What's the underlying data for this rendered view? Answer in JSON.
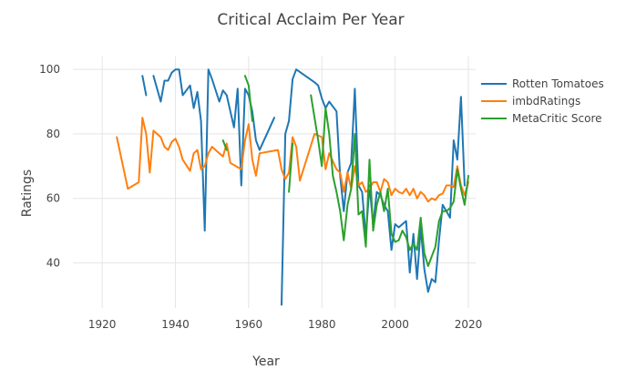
{
  "chart_data": {
    "type": "line",
    "title": "Critical Acclaim Per Year",
    "xlabel": "Year",
    "ylabel": "Ratings",
    "xlim": [
      1912,
      2022
    ],
    "ylim": [
      26,
      104
    ],
    "xticks": [
      1920,
      1940,
      1960,
      1980,
      2000,
      2020
    ],
    "yticks": [
      40,
      60,
      80,
      100
    ],
    "grid": true,
    "legend_position": "top-right",
    "series": [
      {
        "name": "Rotten Tomatoes",
        "color": "#1f77b4",
        "segments": [
          [
            [
              1931,
              98
            ],
            [
              1932,
              92
            ]
          ],
          [
            [
              1934,
              98
            ],
            [
              1936,
              90
            ],
            [
              1937,
              96.5
            ],
            [
              1938,
              96.5
            ],
            [
              1939,
              99
            ],
            [
              1940,
              100
            ],
            [
              1941,
              100
            ],
            [
              1942,
              92
            ],
            [
              1944,
              95
            ],
            [
              1945,
              88
            ],
            [
              1946,
              93
            ],
            [
              1947,
              84
            ],
            [
              1948,
              50
            ],
            [
              1949,
              100
            ],
            [
              1950,
              97
            ],
            [
              1952,
              90
            ],
            [
              1953,
              93.5
            ],
            [
              1954,
              92
            ],
            [
              1956,
              82
            ],
            [
              1957,
              94
            ],
            [
              1958,
              64
            ],
            [
              1959,
              94
            ],
            [
              1960,
              92
            ],
            [
              1961,
              87
            ],
            [
              1962,
              78
            ],
            [
              1963,
              75
            ],
            [
              1967,
              85
            ]
          ],
          [
            [
              1969,
              27
            ],
            [
              1970,
              80
            ],
            [
              1971,
              84
            ],
            [
              1972,
              97
            ],
            [
              1973,
              100
            ],
            [
              1978,
              96
            ],
            [
              1979,
              95
            ],
            [
              1980,
              91
            ],
            [
              1981,
              88
            ],
            [
              1982,
              90
            ],
            [
              1984,
              87
            ],
            [
              1985,
              67
            ],
            [
              1986,
              56
            ],
            [
              1987,
              68
            ],
            [
              1988,
              71
            ],
            [
              1989,
              94
            ],
            [
              1990,
              64
            ],
            [
              1991,
              62
            ],
            [
              1992,
              48
            ],
            [
              1993,
              64
            ],
            [
              1994,
              52
            ],
            [
              1995,
              62
            ],
            [
              1996,
              61
            ],
            [
              1997,
              58
            ],
            [
              1998,
              56
            ],
            [
              1999,
              44
            ],
            [
              2000,
              52
            ],
            [
              2001,
              51
            ],
            [
              2002,
              52
            ],
            [
              2003,
              53
            ],
            [
              2004,
              37
            ],
            [
              2005,
              49
            ],
            [
              2006,
              35
            ],
            [
              2007,
              51
            ],
            [
              2008,
              38
            ],
            [
              2009,
              31
            ],
            [
              2010,
              35
            ],
            [
              2011,
              34
            ],
            [
              2012,
              47
            ],
            [
              2013,
              58
            ],
            [
              2014,
              56
            ],
            [
              2015,
              54
            ],
            [
              2016,
              78
            ],
            [
              2017,
              72
            ],
            [
              2018,
              91.5
            ],
            [
              2019,
              64
            ]
          ]
        ]
      },
      {
        "name": "imbdRatings",
        "color": "#ff7f0e",
        "segments": [
          [
            [
              1924,
              79
            ],
            [
              1927,
              63
            ],
            [
              1930,
              65
            ],
            [
              1931,
              85
            ],
            [
              1932,
              80
            ],
            [
              1933,
              68
            ],
            [
              1934,
              81
            ],
            [
              1936,
              79
            ],
            [
              1937,
              76
            ],
            [
              1938,
              75
            ],
            [
              1939,
              77.5
            ],
            [
              1940,
              78.5
            ],
            [
              1941,
              76
            ],
            [
              1942,
              72
            ],
            [
              1944,
              68.5
            ],
            [
              1945,
              74
            ],
            [
              1946,
              75
            ],
            [
              1947,
              69
            ],
            [
              1948,
              70
            ],
            [
              1949,
              74
            ],
            [
              1950,
              76
            ],
            [
              1952,
              74
            ],
            [
              1953,
              73
            ],
            [
              1954,
              77
            ],
            [
              1955,
              71
            ],
            [
              1958,
              69
            ],
            [
              1959,
              78
            ],
            [
              1960,
              83
            ],
            [
              1961,
              72
            ],
            [
              1962,
              67
            ],
            [
              1963,
              74
            ],
            [
              1968,
              75
            ],
            [
              1969,
              69
            ],
            [
              1970,
              66
            ],
            [
              1971,
              68
            ],
            [
              1972,
              79
            ],
            [
              1973,
              76
            ],
            [
              1974,
              65.5
            ],
            [
              1978,
              80
            ],
            [
              1980,
              79
            ],
            [
              1981,
              69
            ],
            [
              1982,
              74
            ],
            [
              1984,
              69
            ],
            [
              1985,
              68
            ],
            [
              1986,
              62
            ],
            [
              1987,
              68
            ],
            [
              1988,
              63
            ],
            [
              1989,
              70
            ],
            [
              1990,
              64
            ],
            [
              1991,
              65
            ],
            [
              1992,
              62
            ],
            [
              1993,
              63
            ],
            [
              1994,
              65
            ],
            [
              1995,
              65
            ],
            [
              1996,
              62
            ],
            [
              1997,
              66
            ],
            [
              1998,
              65
            ],
            [
              1999,
              61
            ],
            [
              2000,
              63
            ],
            [
              2001,
              62
            ],
            [
              2002,
              61.5
            ],
            [
              2003,
              63
            ],
            [
              2004,
              61
            ],
            [
              2005,
              63
            ],
            [
              2006,
              60
            ],
            [
              2007,
              62
            ],
            [
              2008,
              61
            ],
            [
              2009,
              59
            ],
            [
              2010,
              60
            ],
            [
              2011,
              59.5
            ],
            [
              2012,
              61
            ],
            [
              2013,
              61.5
            ],
            [
              2014,
              64
            ],
            [
              2015,
              64
            ],
            [
              2016,
              63.5
            ],
            [
              2017,
              70
            ],
            [
              2018,
              64
            ],
            [
              2019,
              61
            ],
            [
              2020,
              65
            ]
          ]
        ]
      },
      {
        "name": "MetaCritic Score",
        "color": "#2ca02c",
        "segments": [
          [
            [
              1953,
              78
            ],
            [
              1954,
              75
            ]
          ],
          [
            [
              1959,
              98
            ],
            [
              1960,
              95
            ],
            [
              1961,
              84
            ]
          ],
          [
            [
              1971,
              62
            ],
            [
              1972,
              77
            ]
          ],
          [
            [
              1977,
              92
            ],
            [
              1978,
              85
            ],
            [
              1979,
              78
            ],
            [
              1980,
              70
            ],
            [
              1981,
              88
            ],
            [
              1982,
              80
            ],
            [
              1983,
              67
            ],
            [
              1984,
              62
            ],
            [
              1985,
              56
            ],
            [
              1986,
              47
            ],
            [
              1987,
              58
            ],
            [
              1988,
              63
            ],
            [
              1989,
              80
            ],
            [
              1990,
              55
            ],
            [
              1991,
              56
            ],
            [
              1992,
              45
            ],
            [
              1993,
              72
            ],
            [
              1994,
              50
            ],
            [
              1995,
              58
            ],
            [
              1996,
              62
            ],
            [
              1997,
              56
            ],
            [
              1998,
              63
            ],
            [
              1999,
              49
            ],
            [
              2000,
              46.5
            ],
            [
              2001,
              47
            ],
            [
              2002,
              50
            ],
            [
              2003,
              48
            ],
            [
              2004,
              44
            ],
            [
              2005,
              46
            ],
            [
              2006,
              44
            ],
            [
              2007,
              54
            ],
            [
              2008,
              43
            ],
            [
              2009,
              39
            ],
            [
              2010,
              42
            ],
            [
              2011,
              45
            ],
            [
              2012,
              53
            ],
            [
              2013,
              56
            ],
            [
              2014,
              56
            ],
            [
              2015,
              57
            ],
            [
              2016,
              59
            ],
            [
              2017,
              69
            ],
            [
              2018,
              63
            ],
            [
              2019,
              58
            ],
            [
              2020,
              67
            ]
          ]
        ]
      }
    ]
  }
}
